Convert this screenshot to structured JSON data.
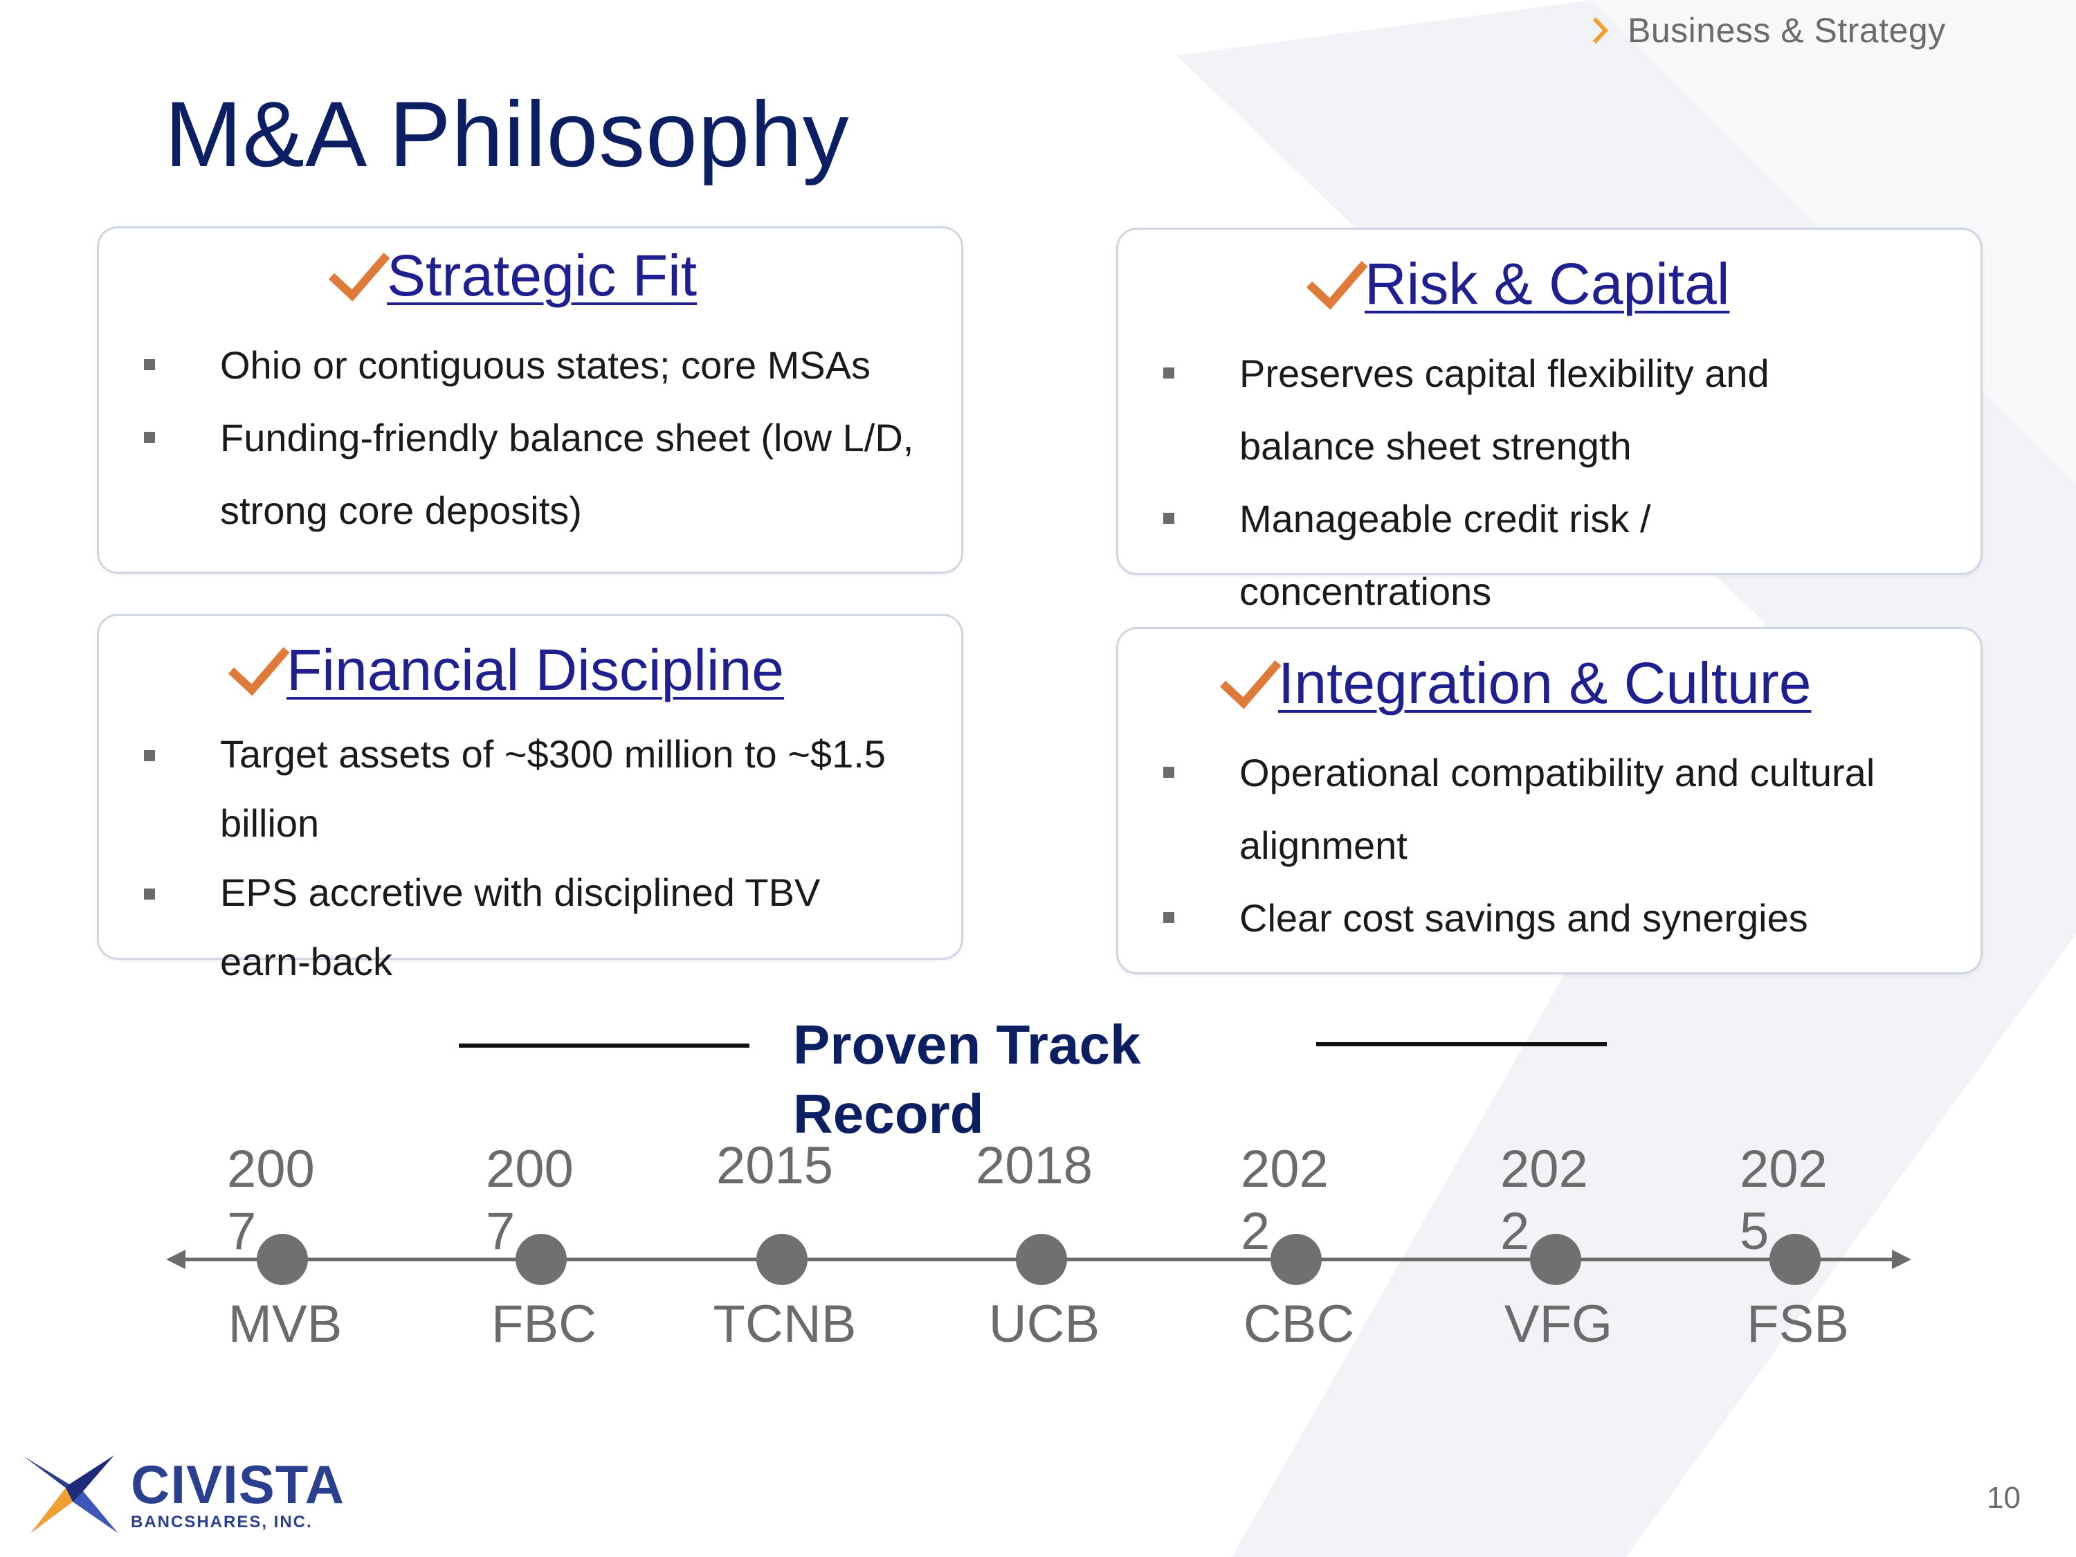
{
  "header": {
    "section": "Business & Strategy",
    "title": "M&A Philosophy"
  },
  "cards": [
    {
      "heading": "Strategic Fit",
      "bullets": [
        "Ohio or contiguous states; core MSAs",
        "Funding-friendly balance sheet (low L/D, strong core deposits)"
      ]
    },
    {
      "heading": "Risk & Capital",
      "bullets": [
        "Preserves capital flexibility and balance sheet strength",
        "Manageable credit risk / concentrations"
      ]
    },
    {
      "heading": "Financial Discipline",
      "bullets": [
        "Target assets of ~$300 million to ~$1.5 billion",
        "EPS accretive with disciplined TBV earn-back"
      ]
    },
    {
      "heading": "Integration & Culture",
      "bullets": [
        "Operational compatibility and cultural alignment",
        "Clear cost savings and synergies"
      ]
    }
  ],
  "track_record": {
    "title": "Proven Track Record",
    "events": [
      {
        "year": "2007",
        "name": "MVB"
      },
      {
        "year": "2007",
        "name": "FBC"
      },
      {
        "year": "2015",
        "name": "TCNB"
      },
      {
        "year": "2018",
        "name": "UCB"
      },
      {
        "year": "2022",
        "name": "CBC"
      },
      {
        "year": "2022",
        "name": "VFG"
      },
      {
        "year": "2025",
        "name": "FSB"
      }
    ]
  },
  "logo": {
    "name": "CIVISTA",
    "sub": "BANCSHARES, INC."
  },
  "page_number": "10",
  "colors": {
    "title_navy": "#0d1f63",
    "heading_blue": "#1f1f8f",
    "check_orange": "#e07a3a",
    "gray": "#6b6b6b"
  }
}
